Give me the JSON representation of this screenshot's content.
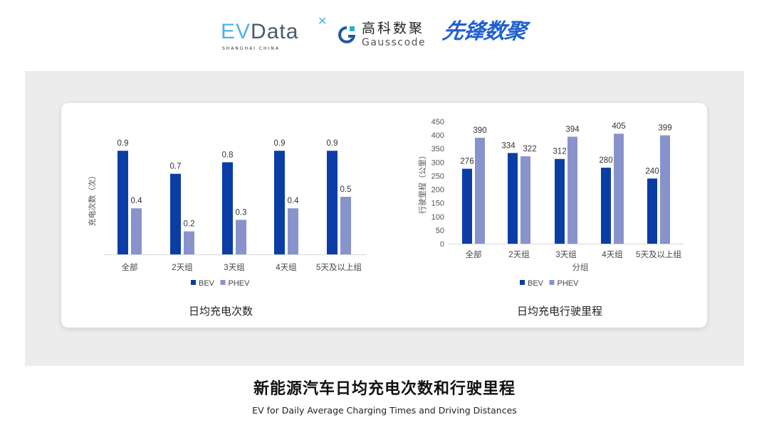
{
  "logos": {
    "evdata": {
      "ev": "EV",
      "data": "Data",
      "sub": "SHANGHAI CHINA"
    },
    "gausscode": {
      "cn": "高科数聚",
      "en": "Gausscode"
    },
    "xianfeng": "先锋数聚"
  },
  "title": "新能源汽车日均充电次数和行驶里程",
  "subtitle": "EV for Daily Average Charging Times and Driving Distances",
  "colors": {
    "BEV": "#0a3ea6",
    "PHEV": "#8893cc",
    "panel": "#ececec"
  },
  "chart_data": [
    {
      "type": "bar",
      "title": "日均充电次数",
      "ylabel": "充电次数（次）",
      "xlabel": "",
      "categories": [
        "全部",
        "2天组",
        "3天组",
        "4天组",
        "5天及以上组"
      ],
      "series": [
        {
          "name": "BEV",
          "values": [
            0.9,
            0.7,
            0.8,
            0.9,
            0.9
          ]
        },
        {
          "name": "PHEV",
          "values": [
            0.4,
            0.2,
            0.3,
            0.4,
            0.5
          ]
        }
      ],
      "ylim": [
        0,
        1.1
      ],
      "y_axis_shown": false,
      "grid": false,
      "legend": "bottom"
    },
    {
      "type": "bar",
      "title": "日均充电行驶里程",
      "ylabel": "行驶里程（公里）",
      "xlabel": "分组",
      "categories": [
        "全部",
        "2天组",
        "3天组",
        "4天组",
        "5天及以上组"
      ],
      "series": [
        {
          "name": "BEV",
          "values": [
            276,
            334,
            312,
            280,
            240
          ]
        },
        {
          "name": "PHEV",
          "values": [
            390,
            322,
            394,
            405,
            399
          ]
        }
      ],
      "ylim": [
        0,
        450
      ],
      "yticks": [
        0,
        50,
        100,
        150,
        200,
        250,
        300,
        350,
        400,
        450
      ],
      "grid": false,
      "legend": "bottom"
    }
  ]
}
